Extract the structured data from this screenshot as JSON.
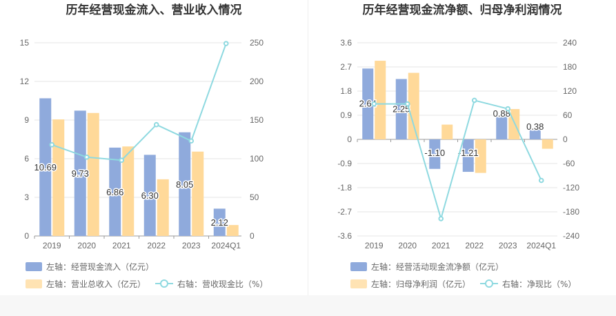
{
  "chart_data": [
    {
      "type": "bar+line",
      "title": "历年经营现金流入、营业收入情况",
      "categories": [
        "2019",
        "2020",
        "2021",
        "2022",
        "2023",
        "2024Q1"
      ],
      "left_axis": {
        "ylim": [
          0,
          15
        ],
        "ticks": [
          "0",
          "3",
          "6",
          "9",
          "12",
          "15"
        ]
      },
      "right_axis": {
        "ylim": [
          0,
          250
        ],
        "ticks": [
          "0",
          "50",
          "100",
          "150",
          "200",
          "250"
        ]
      },
      "series": [
        {
          "name": "左轴：经营现金流入（亿元）",
          "axis": "left",
          "kind": "bar",
          "color": "#8faadc",
          "values": [
            10.69,
            9.73,
            6.86,
            6.3,
            8.05,
            2.12
          ],
          "labels": [
            "10.69",
            "9.73",
            "6.86",
            "6.30",
            "8.05",
            "2.12"
          ]
        },
        {
          "name": "左轴：营业总收入（亿元）",
          "axis": "left",
          "kind": "bar",
          "color": "#ffd999",
          "values": [
            9.05,
            9.55,
            6.95,
            4.4,
            6.55,
            0.85
          ]
        },
        {
          "name": "右轴：营收现金比（%）",
          "axis": "right",
          "kind": "line",
          "color": "#8ed9e0",
          "values": [
            118,
            102,
            98,
            144,
            123,
            249
          ]
        }
      ],
      "grid": true,
      "legend_position": "bottom"
    },
    {
      "type": "bar+line",
      "title": "历年经营现金流净额、归母净利润情况",
      "categories": [
        "2019",
        "2020",
        "2021",
        "2022",
        "2023",
        "2024Q1"
      ],
      "left_axis": {
        "ylim": [
          -3.6,
          3.6
        ],
        "ticks": [
          "-3.6",
          "-2.7",
          "-1.8",
          "-0.9",
          "0",
          "0.9",
          "1.8",
          "2.7",
          "3.6"
        ]
      },
      "right_axis": {
        "ylim": [
          -240,
          240
        ],
        "ticks": [
          "-240",
          "-180",
          "-120",
          "-60",
          "0",
          "60",
          "120",
          "180",
          "240"
        ]
      },
      "series": [
        {
          "name": "左轴：经营活动现金流净额（亿元）",
          "axis": "left",
          "kind": "bar",
          "color": "#8faadc",
          "values": [
            2.64,
            2.25,
            -1.1,
            -1.21,
            0.88,
            0.38
          ],
          "labels": [
            "2.64",
            "2.25",
            "-1.10",
            "-1.21",
            "0.88",
            "0.38"
          ]
        },
        {
          "name": "左轴：归母净利润（亿元）",
          "axis": "left",
          "kind": "bar",
          "color": "#ffd999",
          "values": [
            2.93,
            2.48,
            0.55,
            -1.25,
            1.13,
            -0.35
          ]
        },
        {
          "name": "右轴：净现比（%）",
          "axis": "right",
          "kind": "line",
          "color": "#8ed9e0",
          "values": [
            88,
            88,
            -197,
            97,
            76,
            -102
          ]
        }
      ],
      "grid": true,
      "legend_position": "bottom"
    }
  ]
}
